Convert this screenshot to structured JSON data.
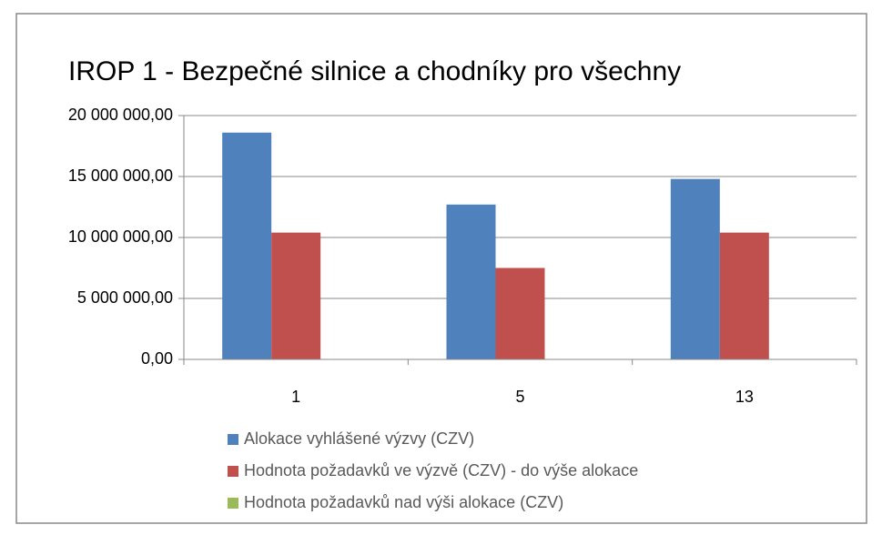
{
  "chart_data": {
    "type": "bar",
    "title": "IROP 1  - Bezpečné silnice a chodníky pro všechny",
    "categories": [
      "1",
      "5",
      "13"
    ],
    "series": [
      {
        "name": "Alokace vyhlášené výzvy (CZV)",
        "color": "#4f81bd",
        "values": [
          18600000,
          12700000,
          14800000
        ]
      },
      {
        "name": "Hodnota požadavků ve výzvě (CZV) - do výše alokace",
        "color": "#c0504d",
        "values": [
          10400000,
          7500000,
          10400000
        ]
      },
      {
        "name": "Hodnota požadavků nad výši alokace (CZV)",
        "color": "#9bbb59",
        "values": [
          0,
          0,
          0
        ]
      }
    ],
    "ylim": [
      0,
      20000000
    ],
    "yticks": [
      {
        "value": 0,
        "label": "0,00"
      },
      {
        "value": 5000000,
        "label": "5 000 000,00"
      },
      {
        "value": 10000000,
        "label": "10 000 000,00"
      },
      {
        "value": 15000000,
        "label": "15 000 000,00"
      },
      {
        "value": 20000000,
        "label": "20 000 000,00"
      }
    ],
    "grid": true,
    "legend": "bottom"
  }
}
